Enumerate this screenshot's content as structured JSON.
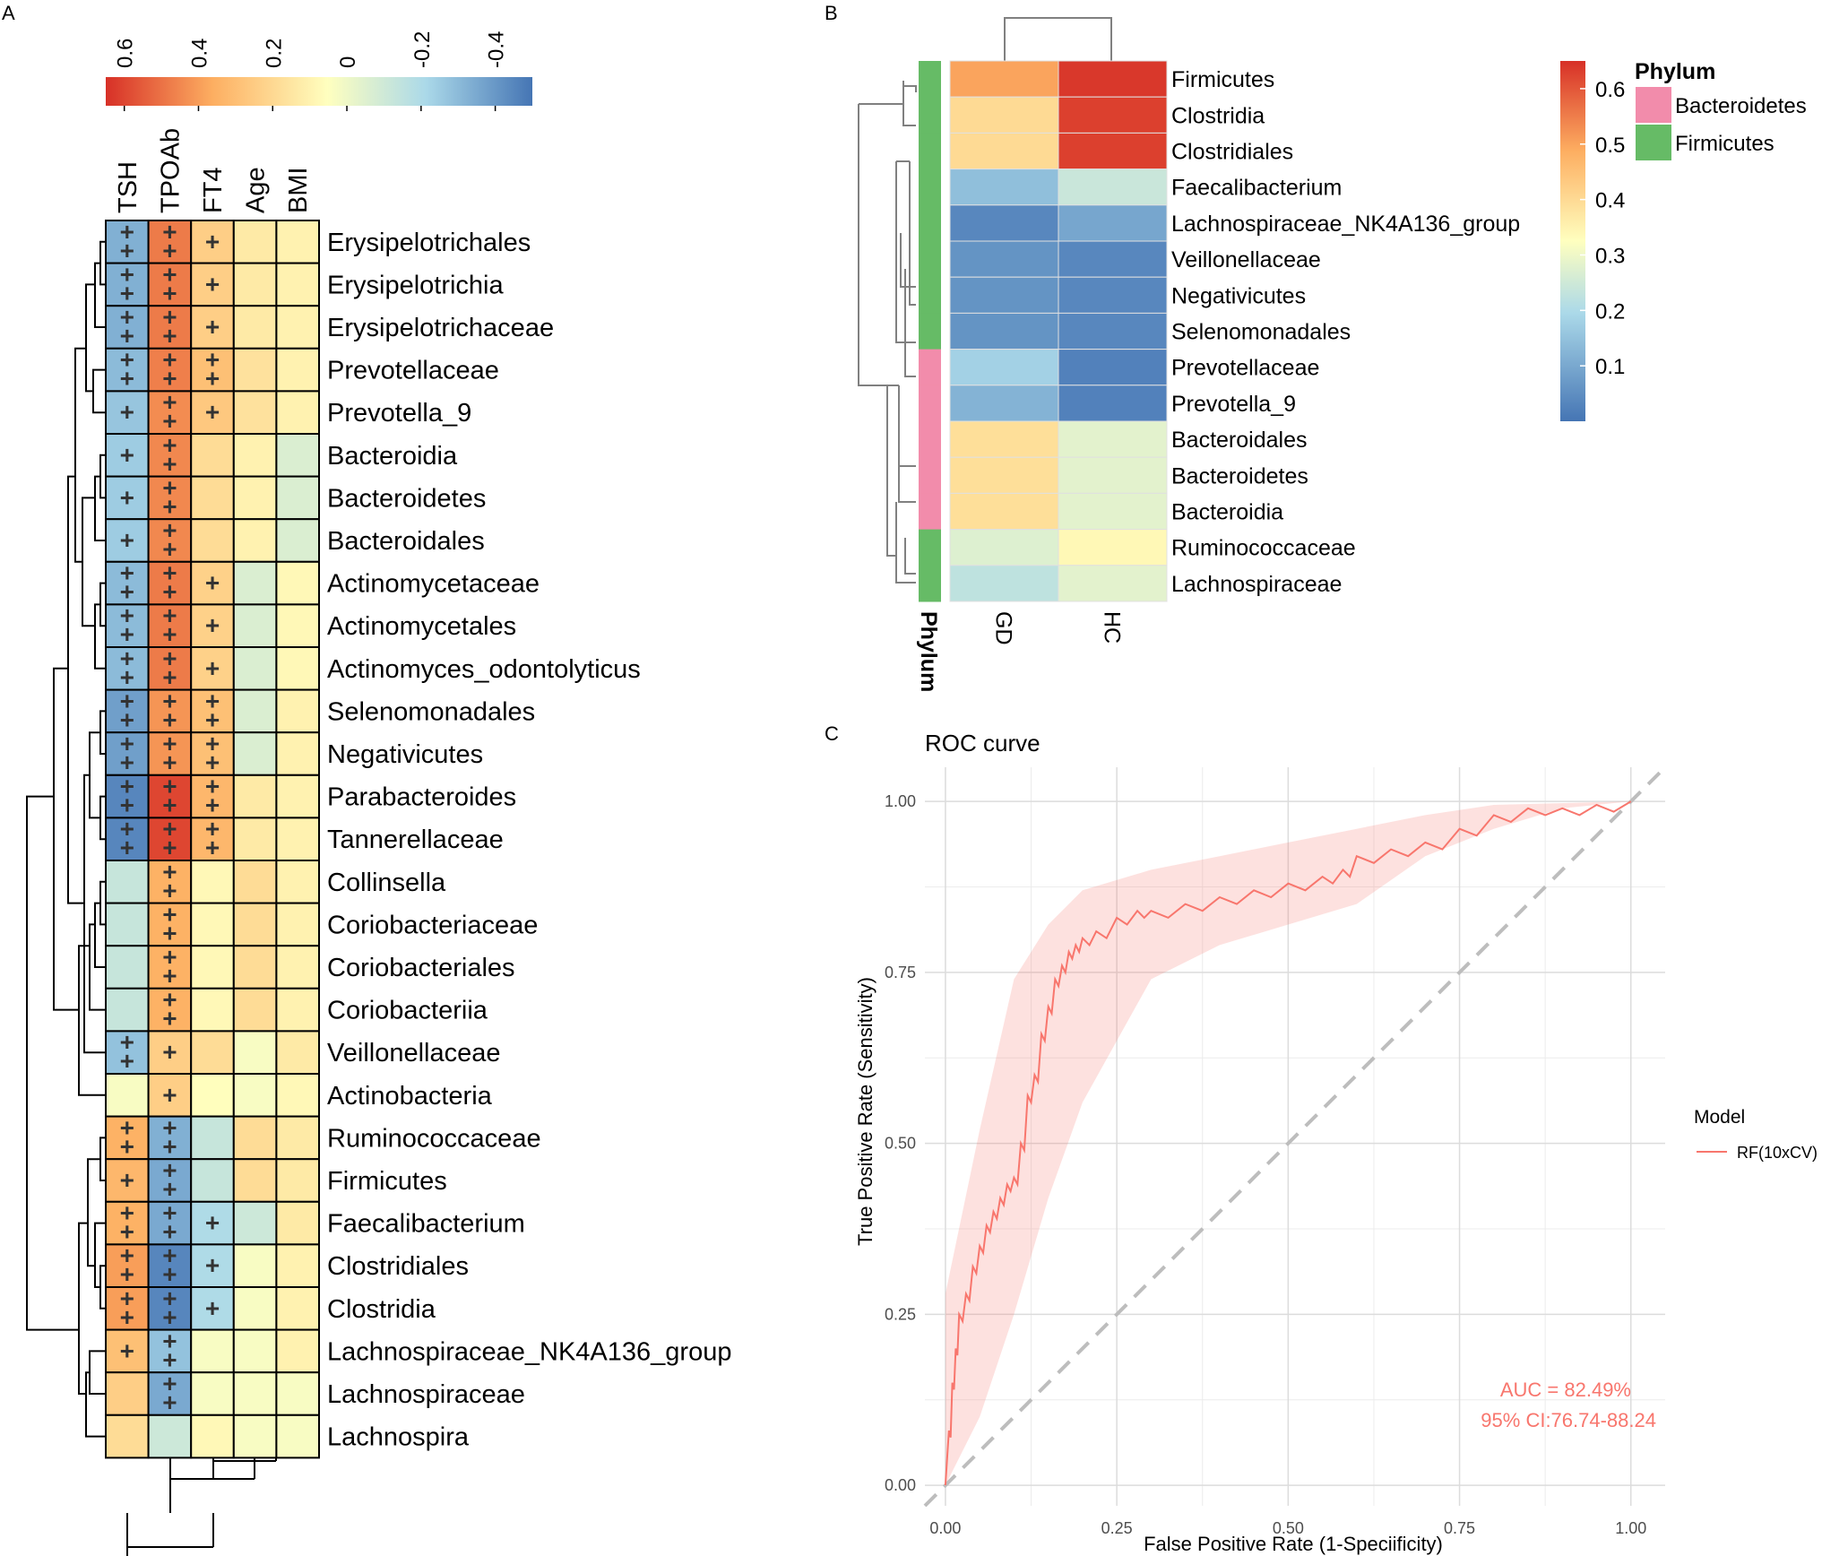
{
  "panels": {
    "a": {
      "letter": "A"
    },
    "b": {
      "letter": "B"
    },
    "c": {
      "letter": "C"
    }
  },
  "chart_data": [
    {
      "type": "heatmap",
      "panel": "A",
      "columns": [
        "TSH",
        "TPOAb",
        "FT4",
        "Age",
        "BMI"
      ],
      "colorbar": {
        "ticks": [
          0.6,
          0.4,
          0.2,
          0,
          -0.2,
          -0.4
        ],
        "tick_labels": [
          "0.6",
          "0.4",
          "0.2",
          "0",
          "-0.2",
          "-0.4"
        ],
        "range": [
          -0.5,
          0.65
        ],
        "colors": [
          "#d73027",
          "#fdae61",
          "#ffffbf",
          "#abd9e9",
          "#4575b4"
        ]
      },
      "rows": [
        {
          "label": "Erysipelotrichales",
          "values": [
            -0.33,
            0.48,
            0.25,
            0.15,
            0.12
          ],
          "sig": [
            "++",
            "++",
            "+",
            "",
            ""
          ]
        },
        {
          "label": "Erysipelotrichia",
          "values": [
            -0.33,
            0.48,
            0.25,
            0.15,
            0.12
          ],
          "sig": [
            "++",
            "++",
            "+",
            "",
            ""
          ]
        },
        {
          "label": "Erysipelotrichaceae",
          "values": [
            -0.33,
            0.48,
            0.25,
            0.15,
            0.12
          ],
          "sig": [
            "++",
            "++",
            "+",
            "",
            ""
          ]
        },
        {
          "label": "Prevotellaceae",
          "values": [
            -0.3,
            0.47,
            0.3,
            0.18,
            0.12
          ],
          "sig": [
            "++",
            "++",
            "++",
            "",
            ""
          ]
        },
        {
          "label": "Prevotella_9",
          "values": [
            -0.27,
            0.44,
            0.27,
            0.18,
            0.12
          ],
          "sig": [
            "+",
            "++",
            "+",
            "",
            ""
          ]
        },
        {
          "label": "Bacteroidia",
          "values": [
            -0.25,
            0.45,
            0.2,
            0.12,
            -0.05
          ],
          "sig": [
            "+",
            "++",
            "",
            "",
            ""
          ]
        },
        {
          "label": "Bacteroidetes",
          "values": [
            -0.25,
            0.45,
            0.2,
            0.12,
            -0.05
          ],
          "sig": [
            "+",
            "++",
            "",
            "",
            ""
          ]
        },
        {
          "label": "Bacteroidales",
          "values": [
            -0.25,
            0.45,
            0.2,
            0.12,
            -0.05
          ],
          "sig": [
            "+",
            "++",
            "",
            "",
            ""
          ]
        },
        {
          "label": "Actinomycetaceae",
          "values": [
            -0.3,
            0.48,
            0.24,
            -0.05,
            0.1
          ],
          "sig": [
            "++",
            "++",
            "+",
            "",
            ""
          ]
        },
        {
          "label": "Actinomycetales",
          "values": [
            -0.3,
            0.48,
            0.24,
            -0.05,
            0.1
          ],
          "sig": [
            "++",
            "++",
            "+",
            "",
            ""
          ]
        },
        {
          "label": "Actinomyces_odontolyticus",
          "values": [
            -0.3,
            0.48,
            0.24,
            -0.05,
            0.1
          ],
          "sig": [
            "++",
            "++",
            "+",
            "",
            ""
          ]
        },
        {
          "label": "Selenomonadales",
          "values": [
            -0.38,
            0.42,
            0.3,
            -0.05,
            0.12
          ],
          "sig": [
            "++",
            "++",
            "++",
            "",
            ""
          ]
        },
        {
          "label": "Negativicutes",
          "values": [
            -0.38,
            0.42,
            0.3,
            -0.05,
            0.12
          ],
          "sig": [
            "++",
            "++",
            "++",
            "",
            ""
          ]
        },
        {
          "label": "Parabacteroides",
          "values": [
            -0.45,
            0.6,
            0.33,
            0.15,
            0.12
          ],
          "sig": [
            "++",
            "++",
            "++",
            "",
            ""
          ]
        },
        {
          "label": "Tannerellaceae",
          "values": [
            -0.45,
            0.6,
            0.33,
            0.15,
            0.12
          ],
          "sig": [
            "++",
            "++",
            "++",
            "",
            ""
          ]
        },
        {
          "label": "Collinsella",
          "values": [
            -0.12,
            0.35,
            0.1,
            0.2,
            0.12
          ],
          "sig": [
            "",
            "++",
            "",
            "",
            ""
          ]
        },
        {
          "label": "Coriobacteriaceae",
          "values": [
            -0.12,
            0.35,
            0.1,
            0.2,
            0.12
          ],
          "sig": [
            "",
            "++",
            "",
            "",
            ""
          ]
        },
        {
          "label": "Coriobacteriales",
          "values": [
            -0.12,
            0.35,
            0.1,
            0.2,
            0.12
          ],
          "sig": [
            "",
            "++",
            "",
            "",
            ""
          ]
        },
        {
          "label": "Coriobacteriia",
          "values": [
            -0.12,
            0.35,
            0.1,
            0.2,
            0.12
          ],
          "sig": [
            "",
            "++",
            "",
            "",
            ""
          ]
        },
        {
          "label": "Veillonellaceae",
          "values": [
            -0.28,
            0.25,
            0.2,
            0.05,
            0.15
          ],
          "sig": [
            "++",
            "+",
            "",
            "",
            ""
          ]
        },
        {
          "label": "Actinobacteria",
          "values": [
            0.05,
            0.25,
            0.08,
            0.05,
            0.1
          ],
          "sig": [
            "",
            "+",
            "",
            "",
            ""
          ]
        },
        {
          "label": "Ruminococcaceae",
          "values": [
            0.35,
            -0.33,
            -0.12,
            0.2,
            0.15
          ],
          "sig": [
            "++",
            "++",
            "",
            "",
            ""
          ]
        },
        {
          "label": "Firmicutes",
          "values": [
            0.33,
            -0.35,
            -0.12,
            0.2,
            0.15
          ],
          "sig": [
            "+",
            "++",
            "",
            "",
            ""
          ]
        },
        {
          "label": "Faecalibacterium",
          "values": [
            0.35,
            -0.35,
            -0.2,
            -0.1,
            0.15
          ],
          "sig": [
            "++",
            "++",
            "+",
            "",
            ""
          ]
        },
        {
          "label": "Clostridiales",
          "values": [
            0.4,
            -0.45,
            -0.2,
            0.05,
            0.12
          ],
          "sig": [
            "++",
            "++",
            "+",
            "",
            ""
          ]
        },
        {
          "label": "Clostridia",
          "values": [
            0.4,
            -0.45,
            -0.2,
            0.05,
            0.12
          ],
          "sig": [
            "++",
            "++",
            "+",
            "",
            ""
          ]
        },
        {
          "label": "Lachnospiraceae_NK4A136_group",
          "values": [
            0.3,
            -0.28,
            0.05,
            0.05,
            0.12
          ],
          "sig": [
            "+",
            "++",
            "",
            "",
            ""
          ]
        },
        {
          "label": "Lachnospiraceae",
          "values": [
            0.25,
            -0.35,
            0.05,
            0.05,
            0.05
          ],
          "sig": [
            "",
            "++",
            "",
            "",
            ""
          ]
        },
        {
          "label": "Lachnospira",
          "values": [
            0.2,
            -0.1,
            0.1,
            0.05,
            0.05
          ],
          "sig": [
            "",
            "",
            "",
            "",
            ""
          ]
        }
      ]
    },
    {
      "type": "heatmap",
      "panel": "B",
      "columns": [
        "GD",
        "HC"
      ],
      "annotation_title": "Phylum",
      "legend": {
        "title": "Phylum",
        "items": [
          {
            "label": "Bacteroidetes",
            "color": "#f28cab"
          },
          {
            "label": "Firmicutes",
            "color": "#66bb66"
          }
        ]
      },
      "colorbar": {
        "ticks": [
          0.6,
          0.5,
          0.4,
          0.3,
          0.2,
          0.1
        ],
        "tick_labels": [
          "0.6",
          "0.5",
          "0.4",
          "0.3",
          "0.2",
          "0.1"
        ],
        "range": [
          0.0,
          0.65
        ],
        "colors": [
          "#4575b4",
          "#abd9e9",
          "#ffffbf",
          "#fdae61",
          "#d73027"
        ]
      },
      "rows": [
        {
          "label": "Firmicutes",
          "phylum": "Firmicutes",
          "values": [
            0.5,
            0.64
          ]
        },
        {
          "label": "Clostridia",
          "phylum": "Firmicutes",
          "values": [
            0.4,
            0.63
          ]
        },
        {
          "label": "Clostridiales",
          "phylum": "Firmicutes",
          "values": [
            0.4,
            0.63
          ]
        },
        {
          "label": "Faecalibacterium",
          "phylum": "Firmicutes",
          "values": [
            0.12,
            0.22
          ]
        },
        {
          "label": "Lachnospiraceae_NK4A136_group",
          "phylum": "Firmicutes",
          "values": [
            0.03,
            0.08
          ]
        },
        {
          "label": "Veillonellaceae",
          "phylum": "Firmicutes",
          "values": [
            0.05,
            0.03
          ]
        },
        {
          "label": "Negativicutes",
          "phylum": "Firmicutes",
          "values": [
            0.05,
            0.03
          ]
        },
        {
          "label": "Selenomonadales",
          "phylum": "Firmicutes",
          "values": [
            0.05,
            0.03
          ]
        },
        {
          "label": "Prevotellaceae",
          "phylum": "Bacteroidetes",
          "values": [
            0.15,
            0.02
          ]
        },
        {
          "label": "Prevotella_9",
          "phylum": "Bacteroidetes",
          "values": [
            0.1,
            0.02
          ]
        },
        {
          "label": "Bacteroidales",
          "phylum": "Bacteroidetes",
          "values": [
            0.39,
            0.27
          ]
        },
        {
          "label": "Bacteroidetes",
          "phylum": "Bacteroidetes",
          "values": [
            0.39,
            0.27
          ]
        },
        {
          "label": "Bacteroidia",
          "phylum": "Bacteroidetes",
          "values": [
            0.39,
            0.27
          ]
        },
        {
          "label": "Ruminococcaceae",
          "phylum": "Firmicutes",
          "values": [
            0.26,
            0.34
          ]
        },
        {
          "label": "Lachnospiraceae",
          "phylum": "Firmicutes",
          "values": [
            0.2,
            0.27
          ]
        }
      ]
    },
    {
      "type": "line",
      "panel": "C",
      "title": "ROC curve",
      "xlabel": "False Positive Rate (1-Speciificity)",
      "ylabel": "True Positive Rate (Sensitivity)",
      "xlim": [
        -0.03,
        1.05
      ],
      "ylim": [
        -0.03,
        1.05
      ],
      "xticks": [
        0,
        0.25,
        0.5,
        0.75,
        1
      ],
      "xtick_labels": [
        "0.00",
        "0.25",
        "0.50",
        "0.75",
        "1.00"
      ],
      "yticks": [
        0,
        0.25,
        0.5,
        0.75,
        1
      ],
      "ytick_labels": [
        "0.00",
        "0.25",
        "0.50",
        "0.75",
        "1.00"
      ],
      "legend": {
        "title": "Model",
        "items": [
          {
            "label": "RF(10xCV)",
            "color": "#f8766d"
          }
        ]
      },
      "annotations": [
        "AUC = 82.49%",
        "95% CI:76.74-88.24"
      ],
      "series": [
        {
          "name": "RF(10xCV)",
          "x": [
            0.0,
            0.005,
            0.01,
            0.015,
            0.02,
            0.03,
            0.04,
            0.05,
            0.06,
            0.07,
            0.08,
            0.09,
            0.1,
            0.11,
            0.12,
            0.13,
            0.14,
            0.15,
            0.16,
            0.17,
            0.18,
            0.19,
            0.2,
            0.22,
            0.25,
            0.28,
            0.3,
            0.35,
            0.4,
            0.45,
            0.5,
            0.55,
            0.58,
            0.6,
            0.65,
            0.7,
            0.75,
            0.8,
            0.85,
            0.9,
            0.95,
            1.0
          ],
          "y": [
            0.0,
            0.08,
            0.15,
            0.2,
            0.25,
            0.28,
            0.32,
            0.35,
            0.38,
            0.4,
            0.42,
            0.44,
            0.45,
            0.5,
            0.57,
            0.6,
            0.66,
            0.7,
            0.74,
            0.76,
            0.78,
            0.79,
            0.8,
            0.81,
            0.83,
            0.84,
            0.84,
            0.85,
            0.86,
            0.87,
            0.88,
            0.89,
            0.9,
            0.92,
            0.93,
            0.94,
            0.96,
            0.98,
            0.99,
            0.99,
            0.995,
            1.0
          ]
        },
        {
          "name": "ci_upper",
          "x": [
            0.0,
            0.05,
            0.1,
            0.15,
            0.2,
            0.3,
            0.4,
            0.5,
            0.6,
            0.7,
            0.8,
            1.0
          ],
          "y": [
            0.28,
            0.52,
            0.74,
            0.82,
            0.87,
            0.9,
            0.92,
            0.94,
            0.96,
            0.98,
            0.995,
            1.0
          ]
        },
        {
          "name": "ci_lower",
          "x": [
            0.0,
            0.05,
            0.1,
            0.15,
            0.2,
            0.25,
            0.3,
            0.4,
            0.5,
            0.6,
            0.7,
            0.8,
            0.9,
            1.0
          ],
          "y": [
            0.0,
            0.1,
            0.25,
            0.42,
            0.56,
            0.65,
            0.74,
            0.79,
            0.82,
            0.85,
            0.92,
            0.96,
            0.99,
            1.0
          ]
        }
      ]
    }
  ]
}
